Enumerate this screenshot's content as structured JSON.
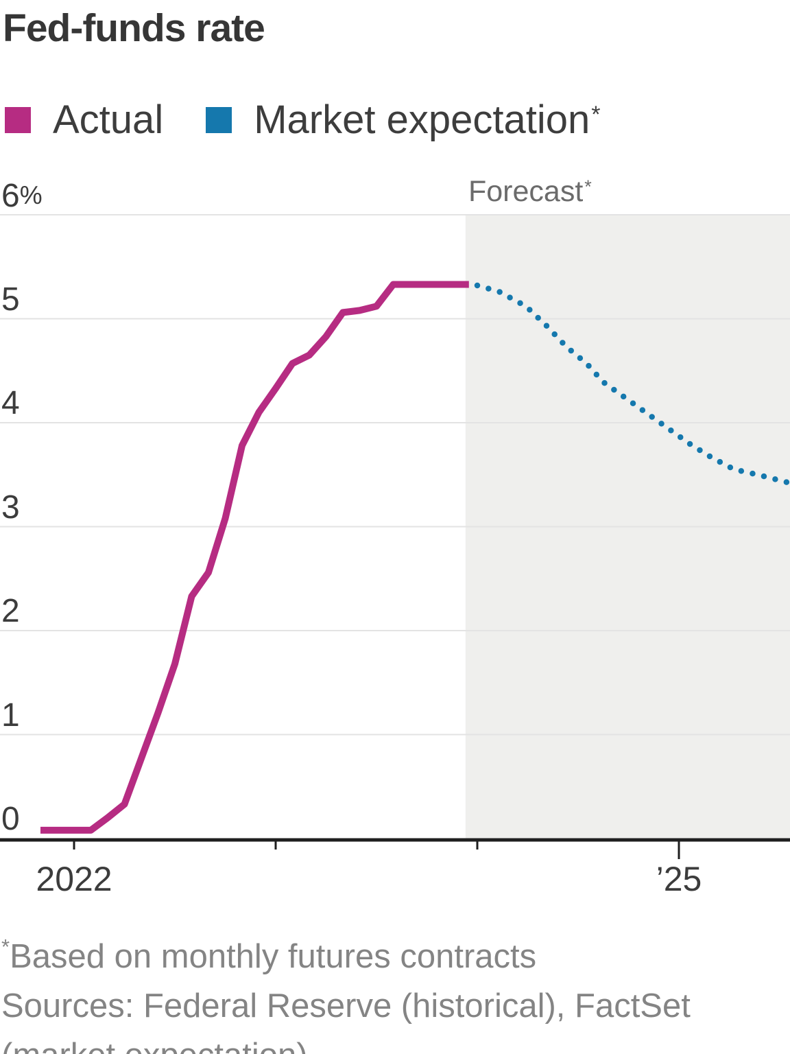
{
  "title": "Fed-funds rate",
  "legend": {
    "items": [
      {
        "label": "Actual",
        "color": "#b62c82"
      },
      {
        "label": "Market expectation",
        "suffix": "*",
        "color": "#1578ad"
      }
    ]
  },
  "forecast_label": {
    "text": "Forecast",
    "suffix": "*"
  },
  "footnotes": {
    "star": "*",
    "note": "Based on monthly futures contracts",
    "sources_line1": "Sources: Federal Reserve (historical), FactSet",
    "sources_line2": "(market expectation)"
  },
  "chart_data": {
    "type": "line",
    "title": "Fed-funds rate",
    "ylabel": "Fed-funds rate, %",
    "ylim": [
      0,
      6
    ],
    "grid": true,
    "legend_position": "top-left",
    "y_ticks": [
      {
        "value": 6,
        "label": "6",
        "suffix": "%"
      },
      {
        "value": 5,
        "label": "5"
      },
      {
        "value": 4,
        "label": "4"
      },
      {
        "value": 3,
        "label": "3"
      },
      {
        "value": 2,
        "label": "2"
      },
      {
        "value": 1,
        "label": "1"
      },
      {
        "value": 0,
        "label": "0"
      }
    ],
    "x_unit": "months since Jan 2022",
    "x_ticks": [
      {
        "month": 0,
        "label": "2022"
      },
      {
        "month": 12,
        "label": ""
      },
      {
        "month": 24,
        "label": ""
      },
      {
        "month": 36,
        "label": "’25"
      }
    ],
    "grid_color": "#e3e3e3",
    "axis_color": "#1f1f1f",
    "forecast_region": {
      "label": "Forecast",
      "start_month": 23.3,
      "shade_color": "#efefed"
    },
    "series": [
      {
        "name": "Actual",
        "style": "solid",
        "color": "#b62c82",
        "points": [
          [
            -2,
            0.08
          ],
          [
            -1,
            0.08
          ],
          [
            0,
            0.08
          ],
          [
            1,
            0.08
          ],
          [
            2,
            0.2
          ],
          [
            3,
            0.33
          ],
          [
            4,
            0.77
          ],
          [
            5,
            1.21
          ],
          [
            6,
            1.68
          ],
          [
            7,
            2.33
          ],
          [
            8,
            2.56
          ],
          [
            9,
            3.08
          ],
          [
            10,
            3.78
          ],
          [
            11,
            4.1
          ],
          [
            12,
            4.33
          ],
          [
            13,
            4.57
          ],
          [
            14,
            4.65
          ],
          [
            15,
            4.83
          ],
          [
            16,
            5.06
          ],
          [
            17,
            5.08
          ],
          [
            18,
            5.12
          ],
          [
            19,
            5.33
          ],
          [
            20,
            5.33
          ],
          [
            21,
            5.33
          ],
          [
            22,
            5.33
          ],
          [
            23.5,
            5.33
          ]
        ]
      },
      {
        "name": "Market expectation",
        "style": "dotted",
        "color": "#1578ad",
        "points": [
          [
            24,
            5.32
          ],
          [
            25.3,
            5.26
          ],
          [
            26.9,
            5.12
          ],
          [
            28.2,
            4.92
          ],
          [
            29.3,
            4.73
          ],
          [
            30.5,
            4.57
          ],
          [
            31.5,
            4.39
          ],
          [
            32.8,
            4.24
          ],
          [
            34.1,
            4.09
          ],
          [
            35.4,
            3.94
          ],
          [
            36.7,
            3.79
          ],
          [
            38,
            3.66
          ],
          [
            39.3,
            3.55
          ],
          [
            40.7,
            3.5
          ],
          [
            41.4,
            3.47
          ],
          [
            42.6,
            3.42
          ]
        ]
      }
    ]
  }
}
